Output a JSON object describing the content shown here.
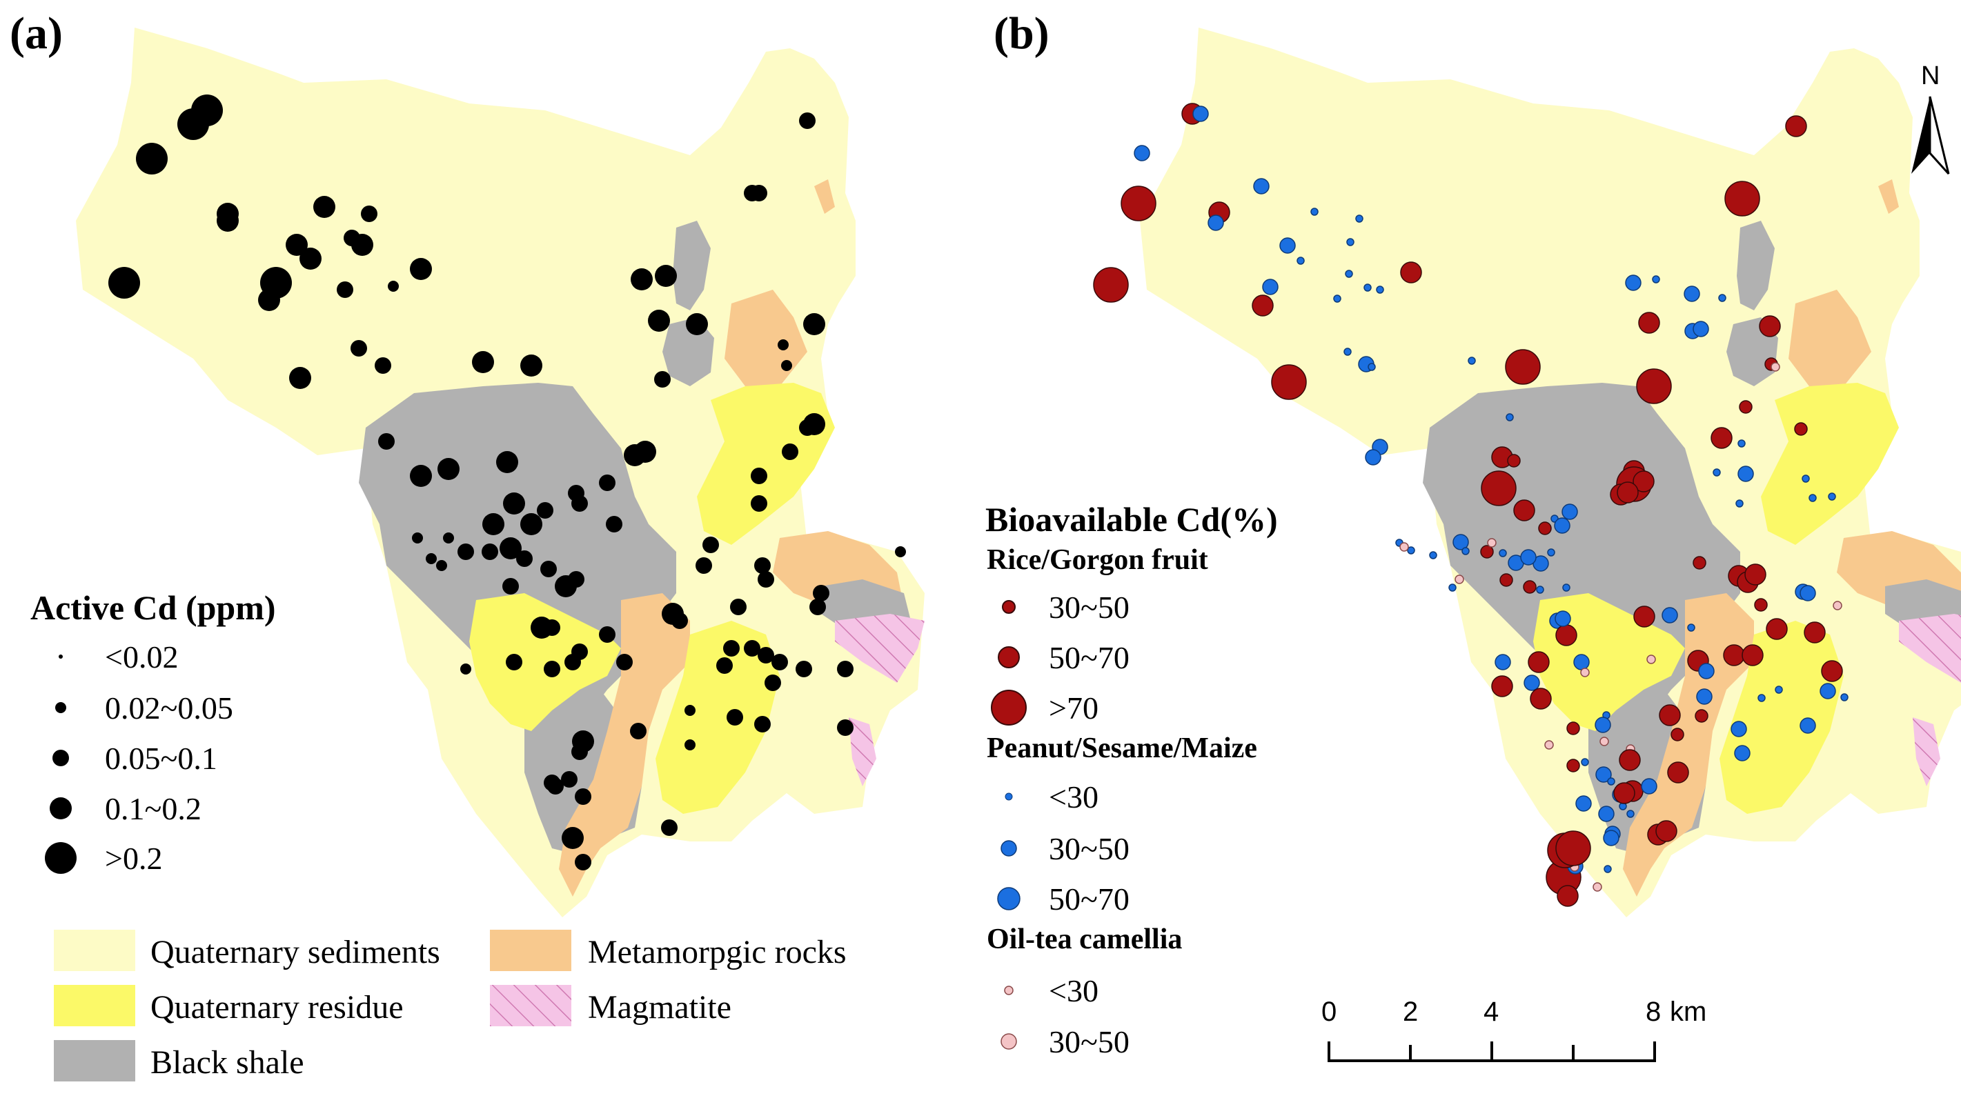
{
  "panels": {
    "a_label": "(a)",
    "b_label": "(b)"
  },
  "colors": {
    "quaternary_sediments": "#fdfbc6",
    "quaternary_residue": "#fbf968",
    "black_shale": "#b1b1b1",
    "metamorphic": "#f8c98e",
    "magmatite": "#f5c4e6",
    "active_point": "#000000",
    "rice_point": "#a80f10",
    "peanut_point": "#1b6fe0",
    "oiltea_point": "#f4c4c6"
  },
  "legend_a": {
    "title": "Active Cd (ppm)",
    "items": [
      "<0.02",
      "0.02~0.05",
      "0.05~0.1",
      "0.1~0.2",
      ">0.2"
    ]
  },
  "legend_geo": {
    "quaternary_sediments": "Quaternary sediments",
    "metamorphic": "Metamorpgic rocks",
    "quaternary_residue": "Quaternary residue",
    "magmatite": "Magmatite",
    "black_shale": "Black shale"
  },
  "legend_b": {
    "title": "Bioavailable Cd(%)",
    "groups": [
      {
        "name": "Rice/Gorgon fruit",
        "items": [
          "30~50",
          "50~70",
          ">70"
        ]
      },
      {
        "name": "Peanut/Sesame/Maize",
        "items": [
          "<30",
          "30~50",
          "50~70"
        ]
      },
      {
        "name": "Oil-tea camellia",
        "items": [
          "<30",
          "30~50"
        ]
      }
    ]
  },
  "scale_bar": {
    "ticks": [
      "0",
      "2",
      "4",
      "8"
    ],
    "unit": "km"
  },
  "north_arrow": {
    "label": "N"
  },
  "map_data": {
    "active_cd_points": [
      [
        300,
        160,
        4
      ],
      [
        280,
        180,
        4
      ],
      [
        220,
        230,
        4
      ],
      [
        1170,
        175,
        2
      ],
      [
        1090,
        280,
        2
      ],
      [
        1100,
        280,
        2
      ],
      [
        470,
        300,
        3
      ],
      [
        330,
        310,
        3
      ],
      [
        330,
        320,
        3
      ],
      [
        430,
        355,
        3
      ],
      [
        535,
        310,
        2
      ],
      [
        510,
        345,
        2
      ],
      [
        180,
        410,
        4
      ],
      [
        400,
        410,
        4
      ],
      [
        610,
        390,
        3
      ],
      [
        525,
        355,
        3
      ],
      [
        450,
        375,
        3
      ],
      [
        390,
        435,
        3
      ],
      [
        500,
        420,
        2
      ],
      [
        570,
        415,
        1
      ],
      [
        930,
        405,
        3
      ],
      [
        955,
        465,
        3
      ],
      [
        1010,
        470,
        3
      ],
      [
        965,
        400,
        3
      ],
      [
        520,
        505,
        2
      ],
      [
        555,
        530,
        2
      ],
      [
        700,
        525,
        3
      ],
      [
        770,
        530,
        3
      ],
      [
        435,
        548,
        3
      ],
      [
        960,
        550,
        2
      ],
      [
        1180,
        470,
        3
      ],
      [
        1135,
        500,
        1
      ],
      [
        1140,
        530,
        1
      ],
      [
        560,
        640,
        2
      ],
      [
        610,
        690,
        3
      ],
      [
        650,
        680,
        3
      ],
      [
        735,
        670,
        3
      ],
      [
        935,
        655,
        3
      ],
      [
        1180,
        615,
        3
      ],
      [
        1145,
        655,
        2
      ],
      [
        1170,
        620,
        2
      ],
      [
        1100,
        730,
        2
      ],
      [
        1030,
        790,
        2
      ],
      [
        1100,
        690,
        2
      ],
      [
        745,
        730,
        3
      ],
      [
        770,
        760,
        3
      ],
      [
        715,
        760,
        3
      ],
      [
        740,
        795,
        3
      ],
      [
        835,
        715,
        2
      ],
      [
        880,
        700,
        2
      ],
      [
        920,
        660,
        3
      ],
      [
        840,
        730,
        2
      ],
      [
        790,
        740,
        2
      ],
      [
        890,
        760,
        2
      ],
      [
        675,
        800,
        2
      ],
      [
        710,
        800,
        2
      ],
      [
        760,
        810,
        2
      ],
      [
        795,
        825,
        2
      ],
      [
        740,
        850,
        2
      ],
      [
        650,
        780,
        1
      ],
      [
        605,
        780,
        1
      ],
      [
        625,
        810,
        1
      ],
      [
        640,
        820,
        1
      ],
      [
        820,
        850,
        3
      ],
      [
        835,
        840,
        2
      ],
      [
        1020,
        820,
        2
      ],
      [
        1105,
        820,
        2
      ],
      [
        1110,
        840,
        2
      ],
      [
        1070,
        880,
        2
      ],
      [
        1190,
        860,
        2
      ],
      [
        1185,
        880,
        2
      ],
      [
        880,
        920,
        2
      ],
      [
        785,
        910,
        3
      ],
      [
        800,
        910,
        2
      ],
      [
        840,
        945,
        2
      ],
      [
        975,
        890,
        3
      ],
      [
        1060,
        940,
        2
      ],
      [
        1090,
        940,
        2
      ],
      [
        1110,
        950,
        2
      ],
      [
        675,
        970,
        1
      ],
      [
        745,
        960,
        2
      ],
      [
        800,
        970,
        2
      ],
      [
        830,
        960,
        2
      ],
      [
        905,
        960,
        2
      ],
      [
        985,
        900,
        2
      ],
      [
        1050,
        965,
        2
      ],
      [
        1130,
        960,
        2
      ],
      [
        1165,
        970,
        2
      ],
      [
        1120,
        990,
        2
      ],
      [
        1225,
        970,
        2
      ],
      [
        1305,
        800,
        1
      ],
      [
        1065,
        1040,
        2
      ],
      [
        1105,
        1050,
        2
      ],
      [
        845,
        1075,
        3
      ],
      [
        1000,
        1030,
        1
      ],
      [
        840,
        1090,
        2
      ],
      [
        825,
        1130,
        2
      ],
      [
        845,
        1155,
        2
      ],
      [
        805,
        1140,
        2
      ],
      [
        925,
        1060,
        2
      ],
      [
        1000,
        1080,
        1
      ],
      [
        970,
        1200,
        2
      ],
      [
        800,
        1135,
        2
      ],
      [
        830,
        1215,
        3
      ],
      [
        845,
        1250,
        2
      ],
      [
        1225,
        1055,
        2
      ]
    ],
    "bioavailable_points": [
      [
        1728,
        165,
        "r",
        1
      ],
      [
        1740,
        165,
        "b",
        1
      ],
      [
        1655,
        222,
        "b",
        1
      ],
      [
        1650,
        295,
        "r",
        3
      ],
      [
        1767,
        308,
        "r",
        1
      ],
      [
        1762,
        323,
        "b",
        1
      ],
      [
        1610,
        413,
        "r",
        3
      ],
      [
        1828,
        270,
        "b",
        1
      ],
      [
        2603,
        183,
        "r",
        1
      ],
      [
        2525,
        288,
        "r",
        3
      ],
      [
        1905,
        307,
        "b",
        0
      ],
      [
        1970,
        317,
        "b",
        0
      ],
      [
        1866,
        356,
        "b",
        1
      ],
      [
        1885,
        378,
        "b",
        0
      ],
      [
        1957,
        351,
        "b",
        0
      ],
      [
        1841,
        416,
        "b",
        1
      ],
      [
        1830,
        443,
        "r",
        1
      ],
      [
        1955,
        397,
        "b",
        0
      ],
      [
        1982,
        417,
        "b",
        0
      ],
      [
        1938,
        433,
        "b",
        0
      ],
      [
        2000,
        420,
        "b",
        0
      ],
      [
        2045,
        395,
        "r",
        1
      ],
      [
        1953,
        510,
        "b",
        0
      ],
      [
        1980,
        528,
        "b",
        1
      ],
      [
        1988,
        532,
        "b",
        0
      ],
      [
        2133,
        523,
        "b",
        0
      ],
      [
        1868,
        554,
        "r",
        3
      ],
      [
        2207,
        532,
        "r",
        3
      ],
      [
        2367,
        410,
        "b",
        1
      ],
      [
        2400,
        405,
        "b",
        0
      ],
      [
        2452,
        426,
        "b",
        1
      ],
      [
        2496,
        432,
        "b",
        0
      ],
      [
        2390,
        468,
        "r",
        1
      ],
      [
        2453,
        480,
        "b",
        1
      ],
      [
        2465,
        477,
        "b",
        1
      ],
      [
        2565,
        473,
        "r",
        1
      ],
      [
        2567,
        528,
        "r",
        0
      ],
      [
        2573,
        532,
        "p",
        0
      ],
      [
        2397,
        560,
        "r",
        3
      ],
      [
        2530,
        590,
        "r",
        0
      ],
      [
        2495,
        635,
        "r",
        1
      ],
      [
        2524,
        643,
        "b",
        0
      ],
      [
        2610,
        622,
        "r",
        0
      ],
      [
        2188,
        605,
        "b",
        0
      ],
      [
        2000,
        648,
        "b",
        1
      ],
      [
        1990,
        663,
        "b",
        1
      ],
      [
        2368,
        683,
        "r",
        1
      ],
      [
        2177,
        663,
        "r",
        1
      ],
      [
        2194,
        668,
        "r",
        0
      ],
      [
        2530,
        687,
        "b",
        1
      ],
      [
        2521,
        730,
        "b",
        0
      ],
      [
        2488,
        685,
        "b",
        0
      ],
      [
        2627,
        722,
        "b",
        0
      ],
      [
        2655,
        720,
        "b",
        0
      ],
      [
        2617,
        694,
        "b",
        0
      ],
      [
        2368,
        702,
        "r",
        2
      ],
      [
        2382,
        698,
        "r",
        1
      ],
      [
        2349,
        717,
        "r",
        1
      ],
      [
        2359,
        714,
        "r",
        1
      ],
      [
        2172,
        708,
        "r",
        3
      ],
      [
        2209,
        740,
        "r",
        1
      ],
      [
        2253,
        752,
        "b",
        0
      ],
      [
        2239,
        766,
        "r",
        0
      ],
      [
        2264,
        762,
        "b",
        1
      ],
      [
        2275,
        742,
        "b",
        1
      ],
      [
        2028,
        787,
        "b",
        0
      ],
      [
        2045,
        798,
        "b",
        0
      ],
      [
        2117,
        786,
        "b",
        1
      ],
      [
        2124,
        799,
        "b",
        0
      ],
      [
        2035,
        793,
        "p",
        0
      ],
      [
        2077,
        805,
        "b",
        0
      ],
      [
        2155,
        800,
        "r",
        0
      ],
      [
        2178,
        802,
        "b",
        0
      ],
      [
        2162,
        787,
        "p",
        0
      ],
      [
        2197,
        816,
        "b",
        1
      ],
      [
        2233,
        817,
        "b",
        1
      ],
      [
        2215,
        808,
        "b",
        1
      ],
      [
        2248,
        801,
        "b",
        0
      ],
      [
        2183,
        841,
        "r",
        0
      ],
      [
        2217,
        851,
        "r",
        0
      ],
      [
        2115,
        840,
        "p",
        0
      ],
      [
        2105,
        852,
        "b",
        0
      ],
      [
        2232,
        855,
        "b",
        0
      ],
      [
        2270,
        852,
        "b",
        0
      ],
      [
        2463,
        816,
        "r",
        0
      ],
      [
        2520,
        835,
        "r",
        1
      ],
      [
        2533,
        844,
        "r",
        1
      ],
      [
        2544,
        833,
        "r",
        1
      ],
      [
        2552,
        877,
        "r",
        0
      ],
      [
        2613,
        858,
        "b",
        1
      ],
      [
        2620,
        860,
        "b",
        1
      ],
      [
        2663,
        878,
        "p",
        0
      ],
      [
        2630,
        917,
        "r",
        1
      ],
      [
        2257,
        900,
        "b",
        1
      ],
      [
        2270,
        921,
        "r",
        1
      ],
      [
        2292,
        960,
        "b",
        1
      ],
      [
        2265,
        897,
        "b",
        1
      ],
      [
        2383,
        894,
        "r",
        1
      ],
      [
        2420,
        892,
        "b",
        1
      ],
      [
        2451,
        910,
        "b",
        0
      ],
      [
        2393,
        956,
        "p",
        0
      ],
      [
        2461,
        958,
        "r",
        1
      ],
      [
        2473,
        973,
        "b",
        1
      ],
      [
        2513,
        950,
        "r",
        1
      ],
      [
        2540,
        950,
        "r",
        1
      ],
      [
        2575,
        912,
        "r",
        1
      ],
      [
        2655,
        973,
        "r",
        1
      ],
      [
        2297,
        975,
        "p",
        0
      ],
      [
        2230,
        960,
        "r",
        1
      ],
      [
        2220,
        990,
        "b",
        1
      ],
      [
        2470,
        1010,
        "b",
        1
      ],
      [
        2328,
        1037,
        "b",
        0
      ],
      [
        2325,
        1075,
        "p",
        0
      ],
      [
        2177,
        995,
        "r",
        1
      ],
      [
        2233,
        1013,
        "r",
        1
      ],
      [
        2178,
        960,
        "b",
        1
      ],
      [
        2323,
        1051,
        "b",
        1
      ],
      [
        2520,
        1057,
        "b",
        1
      ],
      [
        2553,
        1012,
        "b",
        0
      ],
      [
        2578,
        1000,
        "b",
        0
      ],
      [
        2420,
        1037,
        "r",
        1
      ],
      [
        2466,
        1038,
        "r",
        0
      ],
      [
        2525,
        1092,
        "b",
        1
      ],
      [
        2620,
        1052,
        "b",
        1
      ],
      [
        2649,
        1002,
        "b",
        1
      ],
      [
        2673,
        1011,
        "b",
        0
      ],
      [
        2431,
        1065,
        "r",
        0
      ],
      [
        2363,
        1086,
        "p",
        0
      ],
      [
        2245,
        1080,
        "p",
        0
      ],
      [
        2280,
        1056,
        "r",
        0
      ],
      [
        2324,
        1123,
        "b",
        1
      ],
      [
        2362,
        1102,
        "r",
        1
      ],
      [
        2280,
        1110,
        "r",
        0
      ],
      [
        2297,
        1105,
        "b",
        0
      ],
      [
        2335,
        1133,
        "b",
        0
      ],
      [
        2348,
        1152,
        "b",
        1
      ],
      [
        2366,
        1147,
        "r",
        1
      ],
      [
        2328,
        1180,
        "b",
        1
      ],
      [
        2363,
        1180,
        "b",
        0
      ],
      [
        2263,
        1240,
        "b",
        0
      ],
      [
        2352,
        1169,
        "b",
        0
      ],
      [
        2337,
        1209,
        "b",
        1
      ],
      [
        2335,
        1215,
        "b",
        1
      ],
      [
        2266,
        1272,
        "r",
        3
      ],
      [
        2283,
        1256,
        "b",
        1
      ],
      [
        2315,
        1286,
        "p",
        0
      ],
      [
        2295,
        1165,
        "b",
        1
      ],
      [
        2403,
        1210,
        "r",
        1
      ],
      [
        2390,
        1140,
        "b",
        1
      ],
      [
        2432,
        1120,
        "r",
        1
      ],
      [
        2354,
        1150,
        "r",
        1
      ],
      [
        2282,
        1257,
        "p",
        0
      ],
      [
        2330,
        1260,
        "b",
        0
      ],
      [
        2415,
        1205,
        "r",
        1
      ],
      [
        2272,
        1299,
        "r",
        1
      ],
      [
        2268,
        1233,
        "r",
        2
      ],
      [
        2280,
        1230,
        "r",
        2
      ]
    ]
  }
}
